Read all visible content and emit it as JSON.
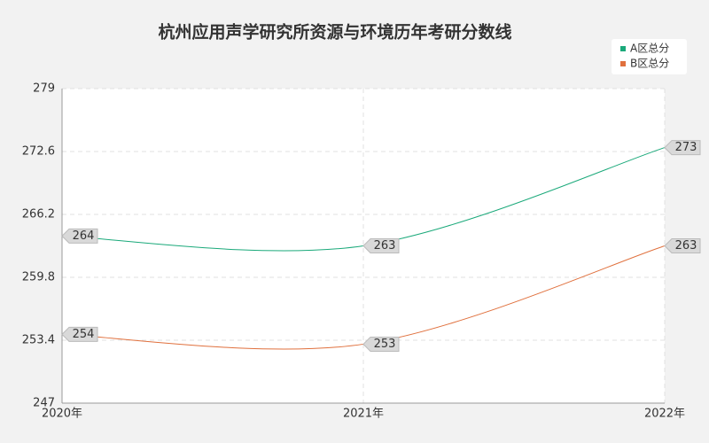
{
  "chart_data": {
    "type": "line",
    "title": "杭州应用声学研究所资源与环境历年考研分数线",
    "categories": [
      "2020年",
      "2021年",
      "2022年"
    ],
    "series": [
      {
        "name": "A区总分",
        "color": "#1aa97a",
        "values": [
          264,
          263,
          273
        ]
      },
      {
        "name": "B区总分",
        "color": "#e0703d",
        "values": [
          254,
          253,
          263
        ]
      }
    ],
    "ylim": [
      247,
      279
    ],
    "yticks": [
      247,
      253.4,
      259.8,
      266.2,
      272.6,
      279
    ],
    "grid": true,
    "legend": "top-right"
  }
}
